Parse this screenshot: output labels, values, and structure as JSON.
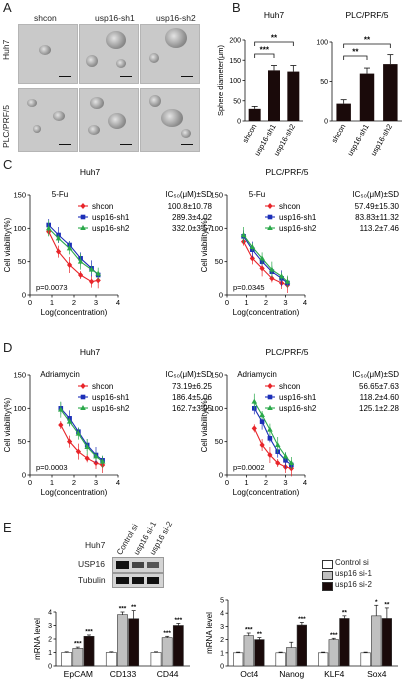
{
  "panels": {
    "A": "A",
    "B": "B",
    "C": "C",
    "D": "D",
    "E": "E"
  },
  "panel_a": {
    "columns": [
      "shcon",
      "usp16-sh1",
      "usp16-sh2"
    ],
    "rows": [
      "Huh7",
      "PLC/PRF/5"
    ]
  },
  "chart_data": [
    {
      "id": "B-huh7",
      "type": "bar",
      "title": "Huh7",
      "ylabel": "Sphere diameter(μm)",
      "ylim": [
        0,
        200
      ],
      "yticks": [
        0,
        50,
        100,
        150,
        200
      ],
      "categories": [
        "shcon",
        "usp16-sh1",
        "usp16-sh2"
      ],
      "values": [
        30,
        125,
        122
      ],
      "errors": [
        6,
        12,
        15
      ],
      "colors": [
        "#1a0a0a",
        "#1a0a0a",
        "#1a0a0a"
      ],
      "significance": [
        {
          "from": 0,
          "to": 1,
          "label": "***"
        },
        {
          "from": 0,
          "to": 2,
          "label": "**"
        }
      ]
    },
    {
      "id": "B-plc",
      "type": "bar",
      "title": "PLC/PRF/5",
      "ylabel": "",
      "ylim": [
        0,
        100
      ],
      "yticks": [
        0,
        50,
        100
      ],
      "categories": [
        "shcon",
        "usp16-sh1",
        "usp16-sh2"
      ],
      "values": [
        22,
        60,
        72
      ],
      "errors": [
        5,
        7,
        12
      ],
      "colors": [
        "#1a0a0a",
        "#1a0a0a",
        "#1a0a0a"
      ],
      "significance": [
        {
          "from": 0,
          "to": 1,
          "label": "**"
        },
        {
          "from": 0,
          "to": 2,
          "label": "**"
        }
      ]
    },
    {
      "id": "C-huh7",
      "type": "line",
      "title": "Huh7",
      "subtitle": "5-Fu",
      "xlabel": "Log(concentration)",
      "ylabel": "Cell viability(%)",
      "xlim": [
        0,
        4
      ],
      "ylim": [
        0,
        150
      ],
      "xticks": [
        0,
        1,
        2,
        3,
        4
      ],
      "yticks": [
        0,
        50,
        100,
        150
      ],
      "x": [
        0.85,
        1.3,
        1.8,
        2.3,
        2.8,
        3.1
      ],
      "series": [
        {
          "name": "shcon",
          "color": "#e8252a",
          "marker": "diamond",
          "values": [
            95,
            65,
            45,
            30,
            20,
            22
          ],
          "ic50": "100.8±10.78"
        },
        {
          "name": "usp16-sh1",
          "color": "#1c2fb8",
          "marker": "square",
          "values": [
            105,
            90,
            75,
            55,
            40,
            30
          ],
          "ic50": "289.3±4.02"
        },
        {
          "name": "usp16-sh2",
          "color": "#2aa84a",
          "marker": "triangle",
          "values": [
            100,
            85,
            70,
            50,
            38,
            32
          ],
          "ic50": "332.0±3.57"
        }
      ],
      "ic50_header": "IC₅₀(μM)±SD",
      "pvalue": "p=0.0073"
    },
    {
      "id": "C-plc",
      "type": "line",
      "title": "PLC/PRF/5",
      "subtitle": "5-Fu",
      "xlabel": "Log(concentration)",
      "ylabel": "Cell viability(%)",
      "xlim": [
        0,
        4
      ],
      "ylim": [
        0,
        150
      ],
      "xticks": [
        0,
        1,
        2,
        3,
        4
      ],
      "yticks": [
        0,
        50,
        100,
        150
      ],
      "x": [
        0.85,
        1.3,
        1.8,
        2.3,
        2.8,
        3.1
      ],
      "series": [
        {
          "name": "shcon",
          "color": "#e8252a",
          "marker": "diamond",
          "values": [
            80,
            55,
            40,
            25,
            18,
            15
          ],
          "ic50": "57.49±15.30"
        },
        {
          "name": "usp16-sh1",
          "color": "#1c2fb8",
          "marker": "square",
          "values": [
            88,
            68,
            50,
            35,
            25,
            18
          ],
          "ic50": "83.83±11.32"
        },
        {
          "name": "usp16-sh2",
          "color": "#2aa84a",
          "marker": "triangle",
          "values": [
            90,
            72,
            55,
            38,
            28,
            20
          ],
          "ic50": "113.2±7.46"
        }
      ],
      "ic50_header": "IC₅₀(μM)±SD",
      "pvalue": "p=0.0345"
    },
    {
      "id": "D-huh7",
      "type": "line",
      "title": "Huh7",
      "subtitle": "Adriamycin",
      "xlabel": "Log(concentration)",
      "ylabel": "Cell viability(%)",
      "xlim": [
        0,
        4
      ],
      "ylim": [
        0,
        150
      ],
      "xticks": [
        0,
        1,
        2,
        3,
        4
      ],
      "yticks": [
        0,
        50,
        100,
        150
      ],
      "x": [
        1.4,
        1.8,
        2.2,
        2.6,
        3.0,
        3.3
      ],
      "series": [
        {
          "name": "shcon",
          "color": "#e8252a",
          "marker": "diamond",
          "values": [
            75,
            50,
            35,
            25,
            18,
            15
          ],
          "ic50": "73.19±6.25"
        },
        {
          "name": "usp16-sh1",
          "color": "#1c2fb8",
          "marker": "square",
          "values": [
            100,
            85,
            65,
            45,
            30,
            22
          ],
          "ic50": "186.4±5.06"
        },
        {
          "name": "usp16-sh2",
          "color": "#2aa84a",
          "marker": "triangle",
          "values": [
            98,
            80,
            62,
            42,
            28,
            20
          ],
          "ic50": "162.7±3.95"
        }
      ],
      "ic50_header": "IC₅₀(μM)±SD",
      "pvalue": "p=0.0003"
    },
    {
      "id": "D-plc",
      "type": "line",
      "title": "PLC/PRF/5",
      "subtitle": "Adriamycin",
      "xlabel": "Log(concentration)",
      "ylabel": "Cell viability(%)",
      "xlim": [
        0,
        4
      ],
      "ylim": [
        0,
        150
      ],
      "xticks": [
        0,
        1,
        2,
        3,
        4
      ],
      "yticks": [
        0,
        50,
        100,
        150
      ],
      "x": [
        1.4,
        1.8,
        2.2,
        2.6,
        3.0,
        3.3
      ],
      "series": [
        {
          "name": "shcon",
          "color": "#e8252a",
          "marker": "diamond",
          "values": [
            70,
            45,
            30,
            18,
            12,
            10
          ],
          "ic50": "56.65±7.63"
        },
        {
          "name": "usp16-sh1",
          "color": "#1c2fb8",
          "marker": "square",
          "values": [
            100,
            80,
            55,
            35,
            22,
            15
          ],
          "ic50": "118.2±4.60"
        },
        {
          "name": "usp16-sh2",
          "color": "#2aa84a",
          "marker": "triangle",
          "values": [
            110,
            90,
            68,
            45,
            28,
            18
          ],
          "ic50": "125.1±2.28"
        }
      ],
      "ic50_header": "IC₅₀(μM)±SD",
      "pvalue": "p=0.0002"
    },
    {
      "id": "E-left",
      "type": "bar",
      "ylabel": "mRNA level",
      "ylim": [
        0,
        4
      ],
      "yticks": [
        0,
        1,
        2,
        3,
        4
      ],
      "categories": [
        "EpCAM",
        "CD133",
        "CD44"
      ],
      "series": [
        {
          "name": "Control si",
          "color": "#ffffff",
          "values": [
            1.0,
            1.0,
            1.0
          ],
          "errors": [
            0.05,
            0.05,
            0.05
          ],
          "sig": [
            "",
            "",
            ""
          ]
        },
        {
          "name": "usp16 si-1",
          "color": "#c0c0c0",
          "values": [
            1.3,
            3.8,
            2.1
          ],
          "errors": [
            0.1,
            0.2,
            0.1
          ],
          "sig": [
            "***",
            "***",
            "***"
          ]
        },
        {
          "name": "usp16 si-2",
          "color": "#1a0a0a",
          "values": [
            2.2,
            3.5,
            3.0
          ],
          "errors": [
            0.1,
            0.6,
            0.15
          ],
          "sig": [
            "***",
            "**",
            "***"
          ]
        }
      ]
    },
    {
      "id": "E-right",
      "type": "bar",
      "ylabel": "mRNA level",
      "ylim": [
        0,
        5
      ],
      "yticks": [
        0,
        1,
        2,
        3,
        4,
        5
      ],
      "categories": [
        "Oct4",
        "Nanog",
        "KLF4",
        "Sox4"
      ],
      "series": [
        {
          "name": "Control si",
          "color": "#ffffff",
          "values": [
            1.0,
            1.0,
            1.0,
            1.0
          ],
          "errors": [
            0.05,
            0.05,
            0.05,
            0.05
          ],
          "sig": [
            "",
            "",
            "",
            ""
          ]
        },
        {
          "name": "usp16 si-1",
          "color": "#c0c0c0",
          "values": [
            2.3,
            1.4,
            2.0,
            3.8
          ],
          "errors": [
            0.2,
            0.4,
            0.1,
            0.8
          ],
          "sig": [
            "***",
            "",
            "***",
            "*"
          ]
        },
        {
          "name": "usp16 si-2",
          "color": "#1a0a0a",
          "values": [
            2.0,
            3.1,
            3.6,
            3.6
          ],
          "errors": [
            0.15,
            0.2,
            0.2,
            0.8
          ],
          "sig": [
            "**",
            "***",
            "**",
            "**"
          ]
        }
      ]
    }
  ],
  "western": {
    "cell_line": "Huh7",
    "lanes": [
      "Control si",
      "usp16 si-1",
      "usp16 si-2"
    ],
    "bands": [
      "USP16",
      "Tubulin"
    ]
  },
  "legend_e": [
    "Control si",
    "usp16 si-1",
    "usp16 si-2"
  ]
}
